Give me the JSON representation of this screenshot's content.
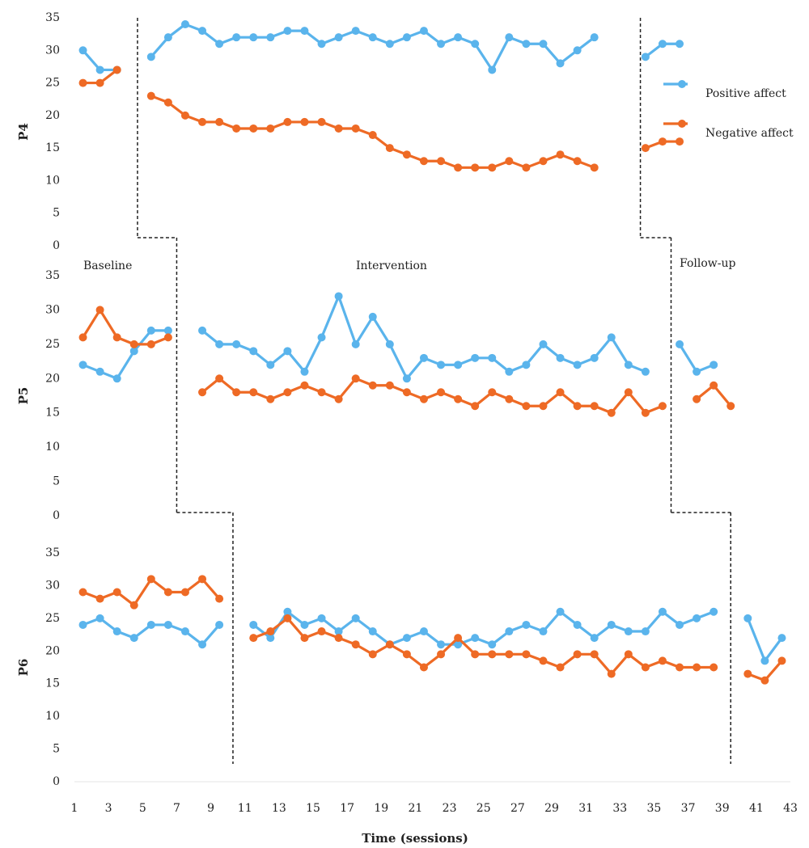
{
  "chart_data": [
    {
      "type": "line",
      "ylabel": "P4",
      "legend": "right",
      "xlim": [
        1,
        43
      ],
      "ylim": [
        0,
        35
      ],
      "yticks": [
        0,
        5,
        10,
        15,
        20,
        25,
        30,
        35
      ],
      "phase_changes": [
        4.7,
        34.2
      ],
      "x": [
        1.5,
        2.5,
        3.5,
        4.5,
        5.5,
        6.5,
        7.5,
        8.5,
        9.5,
        10.5,
        11.5,
        12.5,
        13.5,
        14.5,
        15.5,
        16.5,
        17.5,
        18.5,
        19.5,
        20.5,
        21.5,
        22.5,
        23.5,
        24.5,
        25.5,
        26.5,
        27.5,
        28.5,
        29.5,
        30.5,
        31.5,
        32.5,
        33.5,
        34.5,
        35.5,
        36.5
      ],
      "series": [
        {
          "name": "Positive affect",
          "color": "#5ab4ec",
          "values": [
            30,
            27,
            27,
            null,
            29,
            32,
            34,
            33,
            31,
            32,
            32,
            32,
            33,
            33,
            31,
            32,
            33,
            32,
            31,
            32,
            33,
            31,
            32,
            31,
            27,
            32,
            31,
            31,
            28,
            30,
            32,
            null,
            null,
            29,
            31,
            31
          ]
        },
        {
          "name": "Negative affect",
          "color": "#ee6a25",
          "values": [
            25,
            25,
            27,
            null,
            23,
            22,
            20,
            19,
            19,
            18,
            18,
            18,
            19,
            19,
            19,
            18,
            18,
            17,
            15,
            14,
            13,
            13,
            12,
            12,
            12,
            13,
            12,
            13,
            14,
            13,
            12,
            null,
            null,
            15,
            16,
            16
          ]
        }
      ]
    },
    {
      "type": "line",
      "ylabel": "P5",
      "annotations": [
        "Baseline",
        "Intervention",
        "Follow-up"
      ],
      "xlim": [
        1,
        43
      ],
      "ylim": [
        0,
        35
      ],
      "yticks": [
        0,
        5,
        10,
        15,
        20,
        25,
        30,
        35
      ],
      "phase_changes": [
        7.0,
        36.0
      ],
      "x": [
        1.5,
        2.5,
        3.5,
        4.5,
        5.5,
        6.5,
        7.5,
        8.5,
        9.5,
        10.5,
        11.5,
        12.5,
        13.5,
        14.5,
        15.5,
        16.5,
        17.5,
        18.5,
        19.5,
        20.5,
        21.5,
        22.5,
        23.5,
        24.5,
        25.5,
        26.5,
        27.5,
        28.5,
        29.5,
        30.5,
        31.5,
        32.5,
        33.5,
        34.5,
        35.5,
        36.5,
        37.5,
        38.5,
        39.5
      ],
      "series": [
        {
          "name": "Positive affect",
          "color": "#5ab4ec",
          "values": [
            22,
            21,
            20,
            24,
            27,
            27,
            null,
            27,
            25,
            25,
            24,
            22,
            24,
            21,
            26,
            32,
            25,
            29,
            25,
            20,
            23,
            22,
            22,
            23,
            23,
            21,
            22,
            25,
            23,
            22,
            23,
            26,
            22,
            21,
            null,
            25,
            21,
            22,
            null
          ]
        },
        {
          "name": "Negative affect",
          "color": "#ee6a25",
          "values": [
            26,
            30,
            26,
            25,
            25,
            26,
            null,
            18,
            20,
            18,
            18,
            17,
            18,
            19,
            18,
            17,
            20,
            19,
            19,
            18,
            17,
            18,
            17,
            16,
            18,
            17,
            16,
            16,
            18,
            16,
            16,
            15,
            18,
            15,
            16,
            null,
            17,
            19,
            16
          ]
        }
      ]
    },
    {
      "type": "line",
      "ylabel": "P6",
      "xlabel": "Time (sessions)",
      "xlim": [
        1,
        43
      ],
      "ylim": [
        0,
        35
      ],
      "yticks": [
        0,
        5,
        10,
        15,
        20,
        25,
        30,
        35
      ],
      "xticks": [
        1,
        3,
        5,
        7,
        9,
        11,
        13,
        15,
        17,
        19,
        21,
        23,
        25,
        27,
        29,
        31,
        33,
        35,
        37,
        39,
        41,
        43
      ],
      "phase_changes": [
        10.3,
        39.5
      ],
      "x": [
        1.5,
        2.5,
        3.5,
        4.5,
        5.5,
        6.5,
        7.5,
        8.5,
        9.5,
        10.5,
        11.5,
        12.5,
        13.5,
        14.5,
        15.5,
        16.5,
        17.5,
        18.5,
        19.5,
        20.5,
        21.5,
        22.5,
        23.5,
        24.5,
        25.5,
        26.5,
        27.5,
        28.5,
        29.5,
        30.5,
        31.5,
        32.5,
        33.5,
        34.5,
        35.5,
        36.5,
        37.5,
        38.5,
        39.5,
        40.5,
        41.5,
        42.5
      ],
      "series": [
        {
          "name": "Positive affect",
          "color": "#5ab4ec",
          "values": [
            24,
            25,
            23,
            22,
            24,
            24,
            23,
            21,
            24,
            null,
            24,
            22,
            26,
            24,
            25,
            23,
            25,
            23,
            21,
            22,
            23,
            21,
            21,
            22,
            21,
            23,
            24,
            23,
            26,
            24,
            22,
            24,
            23,
            23,
            26,
            24,
            25,
            26,
            null,
            25,
            18.5,
            22
          ]
        },
        {
          "name": "Negative affect",
          "color": "#ee6a25",
          "values": [
            29,
            28,
            29,
            27,
            31,
            29,
            29,
            31,
            28,
            null,
            22,
            23,
            25,
            22,
            23,
            22,
            21,
            19.5,
            21,
            19.5,
            17.5,
            19.5,
            22,
            19.5,
            19.5,
            19.5,
            19.5,
            18.5,
            17.5,
            19.5,
            19.5,
            16.5,
            19.5,
            17.5,
            18.5,
            17.5,
            17.5,
            17.5,
            null,
            16.5,
            15.5,
            18.5
          ]
        }
      ]
    }
  ]
}
